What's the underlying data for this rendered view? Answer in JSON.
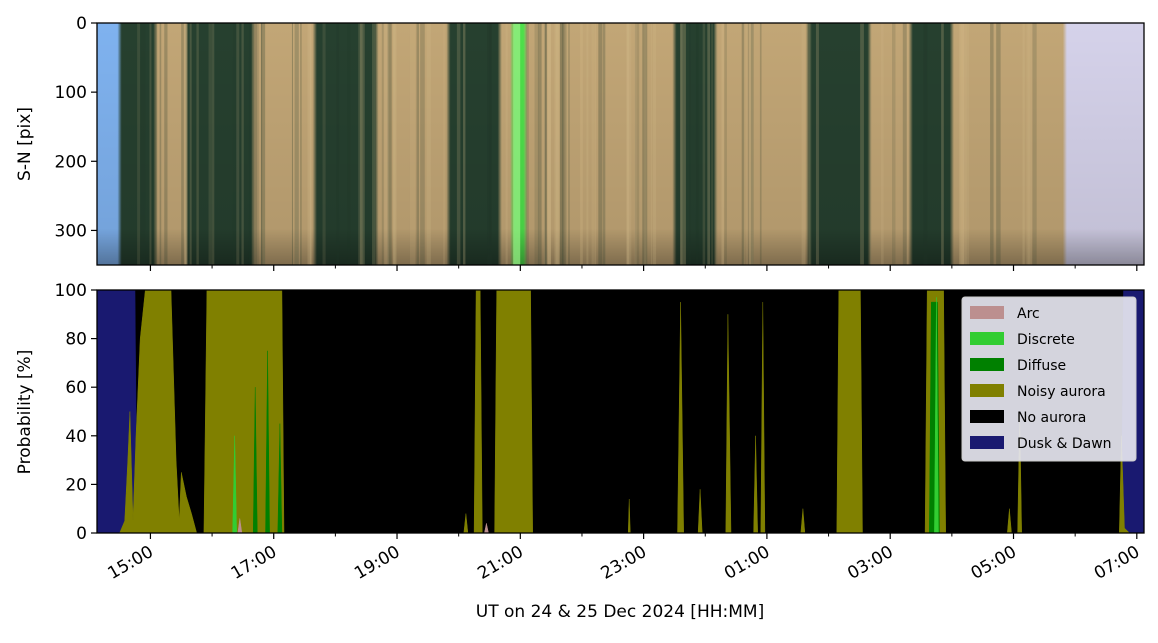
{
  "chart_data": [
    {
      "type": "heatmap",
      "panel": "keogram",
      "ylabel": "S-N [pix]",
      "ylim": [
        350,
        0
      ],
      "yticks": [
        0,
        100,
        200,
        300
      ],
      "ytick_labels": [
        "0",
        "100",
        "200",
        "300"
      ],
      "x_start": "14:08",
      "x_end": "07:07",
      "bright_green_band_time": "20:56",
      "colors": {
        "twilight_blue": "#7fb2ef",
        "auroral_tan": "#c2a676",
        "dark_band": "#26402f",
        "green_emission": "#4ee04a",
        "dawn_lavender": "#d5d2ea"
      },
      "bands": [
        {
          "start": "14:08",
          "end": "14:30",
          "tone": "twilight_blue"
        },
        {
          "start": "14:30",
          "end": "15:05",
          "tone": "dark_band"
        },
        {
          "start": "15:05",
          "end": "15:35",
          "tone": "auroral_tan"
        },
        {
          "start": "15:35",
          "end": "16:40",
          "tone": "dark_band"
        },
        {
          "start": "16:40",
          "end": "17:40",
          "tone": "auroral_tan"
        },
        {
          "start": "17:40",
          "end": "18:40",
          "tone": "dark_band"
        },
        {
          "start": "18:40",
          "end": "19:50",
          "tone": "auroral_tan"
        },
        {
          "start": "19:50",
          "end": "20:40",
          "tone": "dark_band"
        },
        {
          "start": "20:40",
          "end": "20:52",
          "tone": "auroral_tan"
        },
        {
          "start": "20:52",
          "end": "21:05",
          "tone": "green_emission"
        },
        {
          "start": "21:05",
          "end": "23:30",
          "tone": "auroral_tan"
        },
        {
          "start": "23:30",
          "end": "00:10",
          "tone": "dark_band"
        },
        {
          "start": "00:10",
          "end": "01:40",
          "tone": "auroral_tan"
        },
        {
          "start": "01:40",
          "end": "02:40",
          "tone": "dark_band"
        },
        {
          "start": "02:40",
          "end": "03:20",
          "tone": "auroral_tan"
        },
        {
          "start": "03:20",
          "end": "04:00",
          "tone": "dark_band"
        },
        {
          "start": "04:00",
          "end": "05:50",
          "tone": "auroral_tan"
        },
        {
          "start": "05:50",
          "end": "07:07",
          "tone": "dawn_lavender"
        }
      ]
    },
    {
      "type": "area",
      "panel": "classification",
      "xlabel": "UT on 24 & 25 Dec 2024 [HH:MM]",
      "ylabel": "Probability [%]",
      "ylim": [
        0,
        100
      ],
      "yticks": [
        0,
        20,
        40,
        60,
        80,
        100
      ],
      "ytick_labels": [
        "0",
        "20",
        "40",
        "60",
        "80",
        "100"
      ],
      "x_start": "14:08",
      "x_end": "07:07",
      "xticks": [
        "15:00",
        "17:00",
        "19:00",
        "21:00",
        "23:00",
        "01:00",
        "03:00",
        "05:00",
        "07:00"
      ],
      "minor_xticks": [
        "16:00",
        "18:00",
        "20:00",
        "22:00",
        "00:00",
        "02:00",
        "04:00",
        "06:00"
      ],
      "legend_position": "upper right",
      "legend": [
        {
          "name": "Arc",
          "color": "#bc8f8f"
        },
        {
          "name": "Discrete",
          "color": "#32cd32"
        },
        {
          "name": "Diffuse",
          "color": "#008000"
        },
        {
          "name": "Noisy aurora",
          "color": "#808000"
        },
        {
          "name": "No aurora",
          "color": "#000000"
        },
        {
          "name": "Dusk & Dawn",
          "color": "#191970"
        }
      ],
      "series": [
        {
          "name": "Dusk & Dawn",
          "color": "#191970",
          "points": [
            [
              "14:08",
              100
            ],
            [
              "14:45",
              100
            ],
            [
              "14:47",
              0
            ],
            [
              "06:45",
              0
            ],
            [
              "06:47",
              100
            ],
            [
              "07:07",
              100
            ]
          ]
        },
        {
          "name": "Noisy aurora",
          "color": "#808000",
          "points": [
            [
              "14:30",
              0
            ],
            [
              "14:35",
              5
            ],
            [
              "14:38",
              30
            ],
            [
              "14:40",
              50
            ],
            [
              "14:43",
              5
            ],
            [
              "14:46",
              40
            ],
            [
              "14:50",
              80
            ],
            [
              "14:55",
              100
            ],
            [
              "15:20",
              100
            ],
            [
              "15:25",
              30
            ],
            [
              "15:28",
              5
            ],
            [
              "15:30",
              25
            ],
            [
              "15:35",
              15
            ],
            [
              "15:40",
              8
            ],
            [
              "15:45",
              0
            ],
            [
              "15:52",
              0
            ],
            [
              "15:55",
              100
            ],
            [
              "16:55",
              100
            ],
            [
              "17:05",
              100
            ],
            [
              "17:08",
              100
            ],
            [
              "17:10",
              0
            ],
            [
              "20:05",
              0
            ],
            [
              "20:07",
              8
            ],
            [
              "20:09",
              0
            ],
            [
              "20:15",
              0
            ],
            [
              "20:17",
              100
            ],
            [
              "20:21",
              100
            ],
            [
              "20:23",
              0
            ],
            [
              "20:35",
              0
            ],
            [
              "20:37",
              100
            ],
            [
              "21:10",
              100
            ],
            [
              "21:12",
              0
            ],
            [
              "22:45",
              0
            ],
            [
              "22:46",
              14
            ],
            [
              "22:47",
              0
            ],
            [
              "23:33",
              0
            ],
            [
              "23:36",
              95
            ],
            [
              "23:39",
              0
            ],
            [
              "23:53",
              0
            ],
            [
              "23:55",
              18
            ],
            [
              "23:57",
              0
            ],
            [
              "00:20",
              0
            ],
            [
              "00:22",
              90
            ],
            [
              "00:25",
              0
            ],
            [
              "00:47",
              0
            ],
            [
              "00:49",
              40
            ],
            [
              "00:51",
              0
            ],
            [
              "00:54",
              0
            ],
            [
              "00:56",
              95
            ],
            [
              "00:58",
              0
            ],
            [
              "01:33",
              0
            ],
            [
              "01:35",
              10
            ],
            [
              "01:37",
              0
            ],
            [
              "02:08",
              0
            ],
            [
              "02:10",
              100
            ],
            [
              "02:31",
              100
            ],
            [
              "02:33",
              0
            ],
            [
              "03:34",
              0
            ],
            [
              "03:36",
              100
            ],
            [
              "03:52",
              100
            ],
            [
              "03:54",
              0
            ],
            [
              "04:54",
              0
            ],
            [
              "04:56",
              10
            ],
            [
              "04:58",
              0
            ],
            [
              "05:04",
              0
            ],
            [
              "05:06",
              50
            ],
            [
              "05:08",
              0
            ],
            [
              "06:43",
              0
            ],
            [
              "06:45",
              40
            ],
            [
              "06:48",
              2
            ],
            [
              "06:53",
              0
            ]
          ]
        },
        {
          "name": "Diffuse",
          "color": "#008000",
          "points": [
            [
              "16:40",
              0
            ],
            [
              "16:42",
              60
            ],
            [
              "16:44",
              0
            ],
            [
              "16:52",
              0
            ],
            [
              "16:54",
              75
            ],
            [
              "16:56",
              0
            ],
            [
              "17:04",
              0
            ],
            [
              "17:06",
              45
            ],
            [
              "17:08",
              0
            ],
            [
              "03:38",
              0
            ],
            [
              "03:40",
              95
            ],
            [
              "03:46",
              95
            ],
            [
              "03:48",
              0
            ]
          ]
        },
        {
          "name": "Discrete",
          "color": "#32cd32",
          "points": [
            [
              "16:20",
              0
            ],
            [
              "16:22",
              40
            ],
            [
              "16:24",
              0
            ],
            [
              "03:43",
              0
            ],
            [
              "03:45",
              97
            ],
            [
              "03:47",
              0
            ]
          ]
        },
        {
          "name": "Arc",
          "color": "#bc8f8f",
          "points": [
            [
              "16:25",
              0
            ],
            [
              "16:27",
              6
            ],
            [
              "16:29",
              0
            ],
            [
              "20:25",
              0
            ],
            [
              "20:27",
              4
            ],
            [
              "20:29",
              0
            ]
          ]
        }
      ]
    }
  ]
}
